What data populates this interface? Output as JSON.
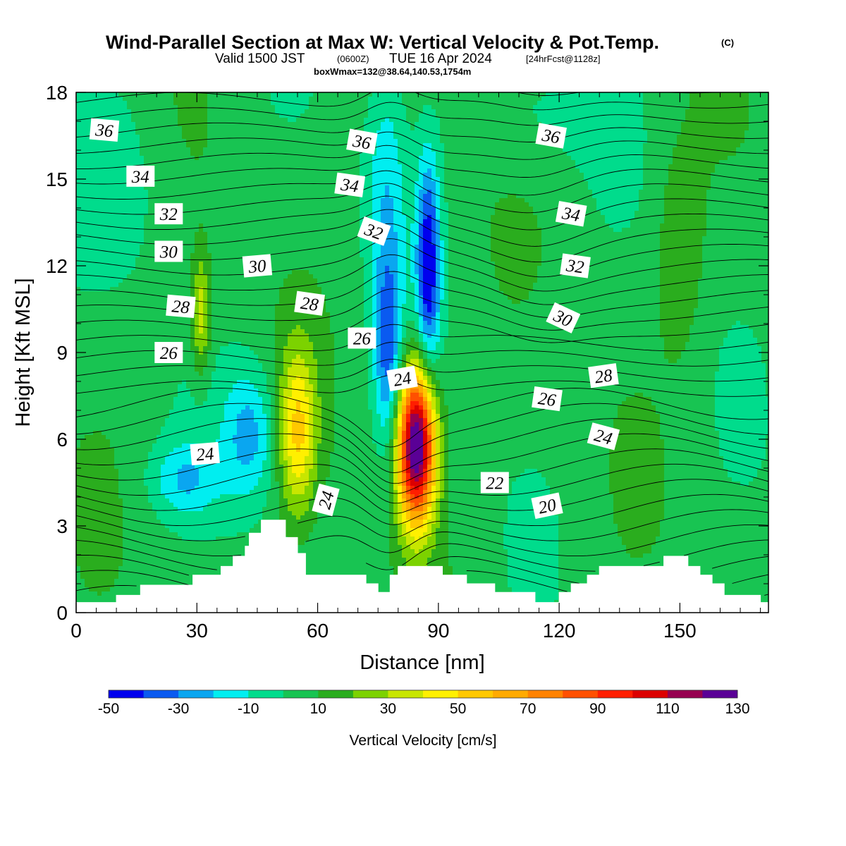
{
  "chart_data": {
    "type": "heatmap",
    "title": "Wind-Parallel Section at Max W: Vertical Velocity & Pot.Temp.",
    "title_mark": "(C)",
    "subtitle": {
      "valid": "Valid 1500 JST",
      "utc": "(0600Z)",
      "date": "TUE 16 Apr 2024",
      "forecast": "[24hrFcst@1128z]"
    },
    "box_info": "boxWmax=132@38.64,140.53,1754m",
    "xlabel": "Distance [nm]",
    "ylabel": "Height [Kft MSL]",
    "xlim": [
      0,
      172
    ],
    "ylim": [
      0,
      18
    ],
    "x_ticks": [
      0,
      30,
      60,
      90,
      120,
      150
    ],
    "y_ticks": [
      0,
      3,
      6,
      9,
      12,
      15,
      18
    ],
    "colorbar": {
      "title": "Vertical Velocity [cm/s]",
      "levels": [
        -50,
        -40,
        -30,
        -20,
        -10,
        0,
        10,
        20,
        30,
        40,
        50,
        60,
        70,
        80,
        90,
        100,
        110,
        120,
        130
      ],
      "tick_labels": [
        "-50",
        "-30",
        "-10",
        "10",
        "30",
        "50",
        "70",
        "90",
        "110",
        "130"
      ],
      "colors": [
        "#0000ee",
        "#0a5af0",
        "#0aa6f0",
        "#00eef0",
        "#00dc8c",
        "#18c452",
        "#2aad1e",
        "#7cd200",
        "#c8e600",
        "#fff000",
        "#ffc800",
        "#ffaa00",
        "#ff8200",
        "#ff5000",
        "#ff1e00",
        "#dc0000",
        "#960050",
        "#5a0096"
      ]
    },
    "background_value": 5,
    "w_features": [
      {
        "x": 84.5,
        "z": 5.8,
        "sx": 3.3,
        "sz": 1.9,
        "value": 132
      },
      {
        "x": 55,
        "z": 6.3,
        "sx": 3.2,
        "sz": 2.0,
        "value": 44
      },
      {
        "x": 31,
        "z": 10.3,
        "sx": 1.6,
        "sz": 1.4,
        "value": 33
      },
      {
        "x": 87.5,
        "z": 12.0,
        "sx": 2.0,
        "sz": 2.6,
        "value": -52
      },
      {
        "x": 77.5,
        "z": 9.0,
        "sx": 2.4,
        "sz": 2.4,
        "value": -38
      },
      {
        "x": 43,
        "z": 6.2,
        "sx": 4.5,
        "sz": 1.6,
        "value": -28
      },
      {
        "x": 27,
        "z": 4.6,
        "sx": 6.0,
        "sz": 0.9,
        "value": -22
      },
      {
        "x": 77,
        "z": 15.0,
        "sx": 3.5,
        "sz": 3.0,
        "value": -20
      },
      {
        "x": 150,
        "z": 12.5,
        "sx": 4.0,
        "sz": 2.5,
        "value": 15
      },
      {
        "x": 12,
        "z": 15.0,
        "sx": 9.0,
        "sz": 2.5,
        "value": -8
      },
      {
        "x": 112,
        "z": 17.0,
        "sx": 12.0,
        "sz": 1.5,
        "value": -8
      }
    ],
    "theta_contours": [
      {
        "level": 20,
        "label": "20"
      },
      {
        "level": 22,
        "label": "22"
      },
      {
        "level": 24,
        "label": "24"
      },
      {
        "level": 26,
        "label": "26"
      },
      {
        "level": 28,
        "label": "28"
      },
      {
        "level": 30,
        "label": "30"
      },
      {
        "level": 32,
        "label": "32"
      },
      {
        "level": 34,
        "label": "34"
      },
      {
        "level": 36,
        "label": "36"
      }
    ],
    "contour_labels": [
      {
        "text": "36",
        "x": 7,
        "z": 16.7,
        "angle": 5
      },
      {
        "text": "36",
        "x": 71,
        "z": 16.3,
        "angle": 10
      },
      {
        "text": "36",
        "x": 118,
        "z": 16.5,
        "angle": 10
      },
      {
        "text": "34",
        "x": 16,
        "z": 15.1,
        "angle": 0
      },
      {
        "text": "34",
        "x": 68,
        "z": 14.8,
        "angle": 8
      },
      {
        "text": "34",
        "x": 123,
        "z": 13.8,
        "angle": 10
      },
      {
        "text": "32",
        "x": 23,
        "z": 13.8,
        "angle": 0
      },
      {
        "text": "32",
        "x": 74,
        "z": 13.2,
        "angle": 20
      },
      {
        "text": "32",
        "x": 124,
        "z": 12.0,
        "angle": 8
      },
      {
        "text": "30",
        "x": 23,
        "z": 12.5,
        "angle": 0
      },
      {
        "text": "30",
        "x": 45,
        "z": 12.0,
        "angle": -5
      },
      {
        "text": "30",
        "x": 121,
        "z": 10.2,
        "angle": 25
      },
      {
        "text": "28",
        "x": 26,
        "z": 10.6,
        "angle": 5
      },
      {
        "text": "28",
        "x": 58,
        "z": 10.7,
        "angle": 8
      },
      {
        "text": "28",
        "x": 131,
        "z": 8.2,
        "angle": -8
      },
      {
        "text": "26",
        "x": 23,
        "z": 9.0,
        "angle": 0
      },
      {
        "text": "26",
        "x": 71,
        "z": 9.5,
        "angle": 0
      },
      {
        "text": "26",
        "x": 117,
        "z": 7.4,
        "angle": 8
      },
      {
        "text": "24",
        "x": 32,
        "z": 5.5,
        "angle": -5
      },
      {
        "text": "24",
        "x": 81,
        "z": 8.1,
        "angle": -10
      },
      {
        "text": "24",
        "x": 131,
        "z": 6.1,
        "angle": 15
      },
      {
        "text": "24",
        "x": 62,
        "z": 3.9,
        "angle": -75
      },
      {
        "text": "22",
        "x": 104,
        "z": 4.5,
        "angle": 0
      },
      {
        "text": "20",
        "x": 117,
        "z": 3.7,
        "angle": -12
      }
    ],
    "terrain_kft": [
      [
        0,
        0.35
      ],
      [
        10,
        0.35
      ],
      [
        10,
        0.6
      ],
      [
        16,
        0.6
      ],
      [
        16,
        0.95
      ],
      [
        29,
        0.95
      ],
      [
        29,
        1.3
      ],
      [
        36,
        1.3
      ],
      [
        36,
        1.6
      ],
      [
        39,
        1.6
      ],
      [
        39,
        1.95
      ],
      [
        42,
        1.95
      ],
      [
        42,
        2.3
      ],
      [
        43,
        2.3
      ],
      [
        43,
        2.75
      ],
      [
        46,
        2.75
      ],
      [
        46,
        3.2
      ],
      [
        52,
        3.2
      ],
      [
        52,
        2.6
      ],
      [
        55,
        2.6
      ],
      [
        55,
        2.05
      ],
      [
        57,
        2.05
      ],
      [
        57,
        1.3
      ],
      [
        72,
        1.3
      ],
      [
        72,
        1.0
      ],
      [
        75,
        1.0
      ],
      [
        75,
        0.7
      ],
      [
        78,
        0.7
      ],
      [
        78,
        1.3
      ],
      [
        80,
        1.3
      ],
      [
        80,
        1.6
      ],
      [
        91,
        1.6
      ],
      [
        91,
        1.3
      ],
      [
        97,
        1.3
      ],
      [
        97,
        1.0
      ],
      [
        104,
        1.0
      ],
      [
        104,
        0.7
      ],
      [
        114,
        0.7
      ],
      [
        114,
        0.35
      ],
      [
        120,
        0.35
      ],
      [
        120,
        0.7
      ],
      [
        123,
        0.7
      ],
      [
        123,
        1.0
      ],
      [
        127,
        1.0
      ],
      [
        127,
        1.3
      ],
      [
        130,
        1.3
      ],
      [
        130,
        1.6
      ],
      [
        146,
        1.6
      ],
      [
        146,
        1.95
      ],
      [
        152,
        1.95
      ],
      [
        152,
        1.6
      ],
      [
        155,
        1.6
      ],
      [
        155,
        1.3
      ],
      [
        158,
        1.3
      ],
      [
        158,
        1.0
      ],
      [
        161,
        1.0
      ],
      [
        161,
        0.6
      ],
      [
        170,
        0.6
      ],
      [
        170,
        0.35
      ],
      [
        172,
        0.35
      ]
    ]
  }
}
